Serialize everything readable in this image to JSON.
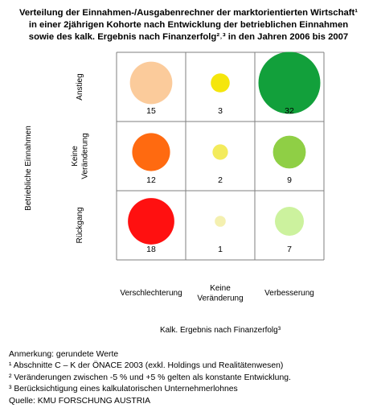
{
  "title": {
    "line1": "Verteilung der Einnahmen-/Ausgabenrechner der marktorientierten Wirtschaft¹",
    "line2": "in einer 2jährigen Kohorte nach Entwicklung der betrieblichen Einnahmen",
    "line3": "sowie des kalk. Ergebnis nach Finanzerfolg²˒³ in den Jahren 2006 bis 2007"
  },
  "chart_data": {
    "type": "bubble-matrix",
    "xlabel": "Kalk. Ergebnis nach Finanzerfolg³",
    "ylabel": "Betriebliche Einnahmen",
    "x_categories": [
      "Verschlechterung",
      "Keine\nVeränderung",
      "Verbesserung"
    ],
    "y_categories": [
      "Anstieg",
      "Keine\nVeränderung",
      "Rückgang"
    ],
    "cells": [
      {
        "row": "Anstieg",
        "col": "Verschlechterung",
        "value": 15,
        "color": "#FBCB9B"
      },
      {
        "row": "Anstieg",
        "col": "Keine\nVeränderung",
        "value": 3,
        "color": "#F5E60C"
      },
      {
        "row": "Anstieg",
        "col": "Verbesserung",
        "value": 32,
        "color": "#12A03B"
      },
      {
        "row": "Keine\nVeränderung",
        "col": "Verschlechterung",
        "value": 12,
        "color": "#FF6A10"
      },
      {
        "row": "Keine\nVeränderung",
        "col": "Keine\nVeränderung",
        "value": 2,
        "color": "#F3EB5C"
      },
      {
        "row": "Keine\nVeränderung",
        "col": "Verbesserung",
        "value": 9,
        "color": "#8FCF45"
      },
      {
        "row": "Rückgang",
        "col": "Verschlechterung",
        "value": 18,
        "color": "#FF1010"
      },
      {
        "row": "Rückgang",
        "col": "Keine\nVeränderung",
        "value": 1,
        "color": "#F4F0B0"
      },
      {
        "row": "Rückgang",
        "col": "Verbesserung",
        "value": 7,
        "color": "#CCF29E"
      }
    ],
    "grid": true
  },
  "notes": [
    "Anmerkung: gerundete Werte",
    "¹ Abschnitte C – K der ÖNACE 2003 (exkl. Holdings und Realitätenwesen)",
    "² Veränderungen zwischen -5 % und +5 % gelten als konstante Entwicklung.",
    "³ Berücksichtigung eines kalkulatorischen Unternehmerlohnes",
    "Quelle: KMU FORSCHUNG AUSTRIA"
  ]
}
